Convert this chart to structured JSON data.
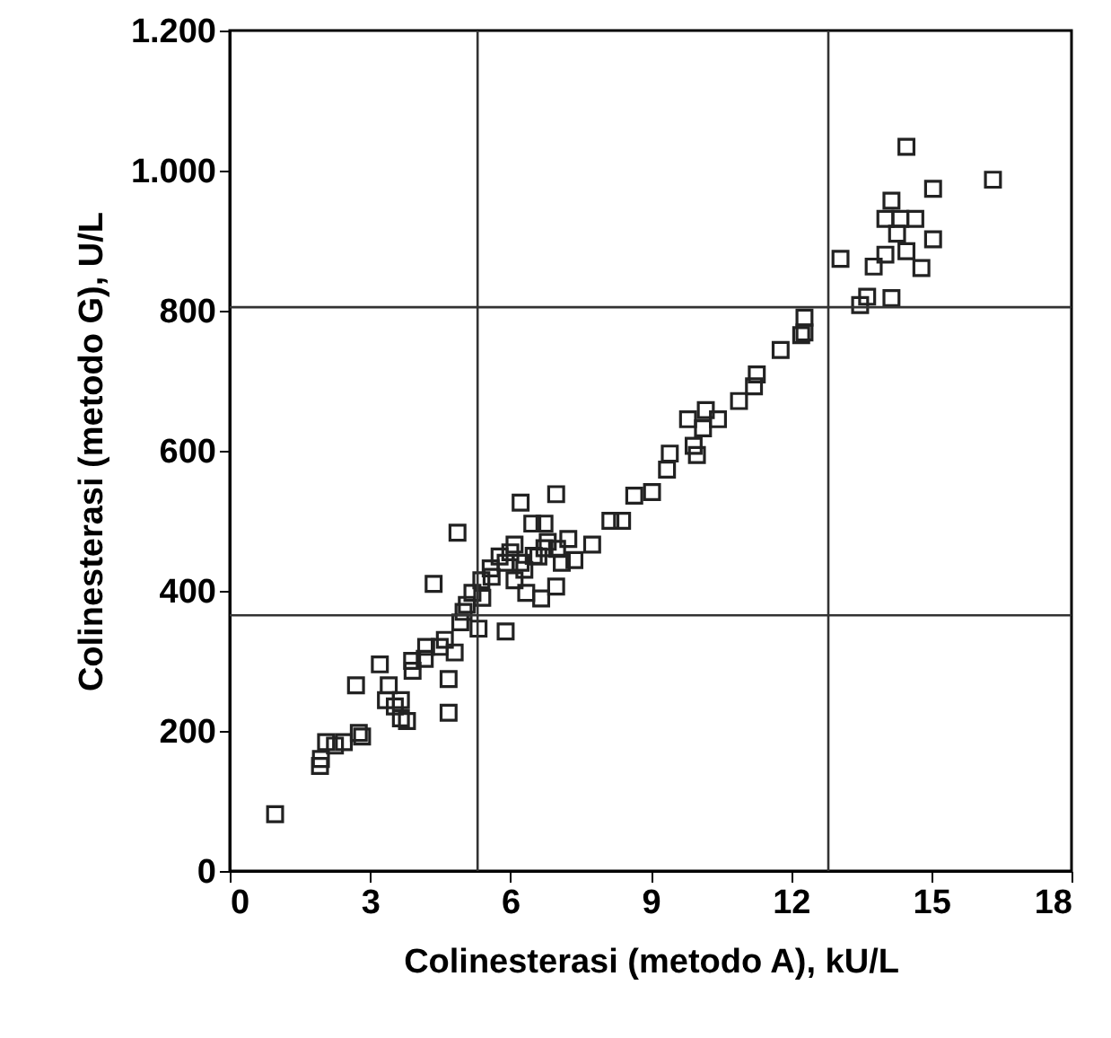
{
  "chart_data": {
    "type": "scatter",
    "xlabel": "Colinesterasi (metodo A), kU/L",
    "ylabel": "Colinesterasi (metodo G), U/L",
    "marker": "square",
    "grid": false,
    "xlim": [
      0,
      18
    ],
    "ylim": [
      0,
      1200
    ],
    "xticks": [
      0,
      3,
      6,
      9,
      12,
      15,
      18
    ],
    "yticks": [
      0,
      200,
      400,
      600,
      800,
      {
        "value": 1000,
        "label": "1.000"
      },
      {
        "value": 1200,
        "label": "1.200"
      }
    ],
    "ref_lines": [
      {
        "axis": "x",
        "value": 5.3,
        "color": "#333333"
      },
      {
        "axis": "x",
        "value": 12.8,
        "color": "#333333"
      },
      {
        "axis": "y",
        "value": 365,
        "color": "#333333"
      },
      {
        "axis": "y",
        "value": 805,
        "color": "#333333"
      }
    ],
    "series": [
      {
        "color": "#222222",
        "x": [
          0.97,
          1.93,
          1.95,
          2.06,
          2.25,
          2.44,
          2.76,
          2.83,
          2.7,
          3.21,
          3.4,
          3.34,
          3.66,
          3.66,
          3.79,
          3.53,
          3.91,
          4.17,
          4.36,
          4.68,
          4.68,
          4.49,
          4.81,
          4.87,
          4.93,
          5.07,
          5.19,
          5.32,
          5.38,
          5.9,
          5.77,
          6.22,
          6.34,
          6.66,
          6.98,
          6.22,
          6.98,
          6.47,
          6.73,
          6.09,
          5.58,
          6.09,
          6.6,
          7.37,
          7.75,
          8.14,
          8.39,
          8.65,
          9.03,
          9.35,
          9.41,
          9.99,
          7.24,
          6.73,
          5.6,
          5.9,
          6.0,
          6.3,
          6.5,
          5.4,
          5.0,
          4.6,
          4.2,
          3.9,
          6.8,
          7.0,
          7.1,
          14.47,
          16.32,
          15.04,
          14.15,
          14.02,
          14.34,
          14.66,
          15.04,
          14.27,
          14.02,
          14.47,
          13.77,
          14.79,
          13.06,
          13.63,
          14.15,
          13.48,
          12.29,
          12.29,
          12.22,
          11.78,
          11.27,
          11.21,
          10.89,
          10.18,
          10.44,
          9.8,
          10.12,
          9.92
        ],
        "values": [
          81,
          150,
          160,
          184,
          179,
          184,
          197,
          192,
          265,
          295,
          265,
          244,
          244,
          218,
          214,
          235,
          286,
          303,
          410,
          274,
          226,
          320,
          312,
          483,
          355,
          380,
          397,
          346,
          415,
          342,
          449,
          440,
          397,
          389,
          406,
          526,
          538,
          496,
          496,
          466,
          432,
          415,
          449,
          444,
          466,
          500,
          500,
          536,
          541,
          573,
          596,
          594,
          474,
          461,
          420,
          440,
          455,
          430,
          450,
          390,
          370,
          330,
          320,
          300,
          470,
          460,
          440,
          1034,
          987,
          974,
          957,
          931,
          931,
          931,
          902,
          910,
          880,
          885,
          863,
          861,
          874,
          820,
          818,
          808,
          790,
          769,
          765,
          744,
          709,
          692,
          671,
          658,
          645,
          645,
          632,
          607
        ]
      }
    ]
  }
}
